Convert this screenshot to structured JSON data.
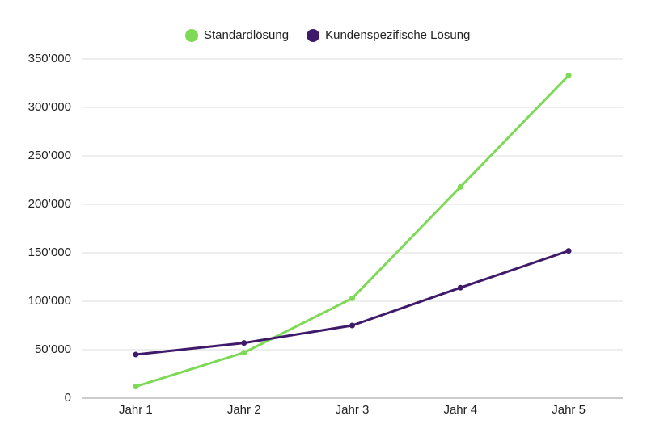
{
  "chart_data": {
    "type": "line",
    "categories": [
      "Jahr 1",
      "Jahr 2",
      "Jahr 3",
      "Jahr 4",
      "Jahr 5"
    ],
    "series": [
      {
        "name": "Standardlösung",
        "color": "#7ed957",
        "values": [
          12000,
          47000,
          103000,
          218000,
          333000
        ]
      },
      {
        "name": "Kundenspezifische Lösung",
        "color": "#3f1a6b",
        "values": [
          45000,
          57000,
          75000,
          114000,
          152000
        ]
      }
    ],
    "ylim": [
      0,
      350000
    ],
    "yticks": [
      0,
      {
        "value": 50000,
        "label": "50’000"
      },
      {
        "value": 100000,
        "label": "100’000"
      },
      {
        "value": 150000,
        "label": "150’000"
      },
      {
        "value": 200000,
        "label": "200’000"
      },
      {
        "value": 250000,
        "label": "250’000"
      },
      {
        "value": 300000,
        "label": "300’000"
      },
      {
        "value": 350000,
        "label": "350’000"
      }
    ],
    "grid": true,
    "legend": "top"
  }
}
